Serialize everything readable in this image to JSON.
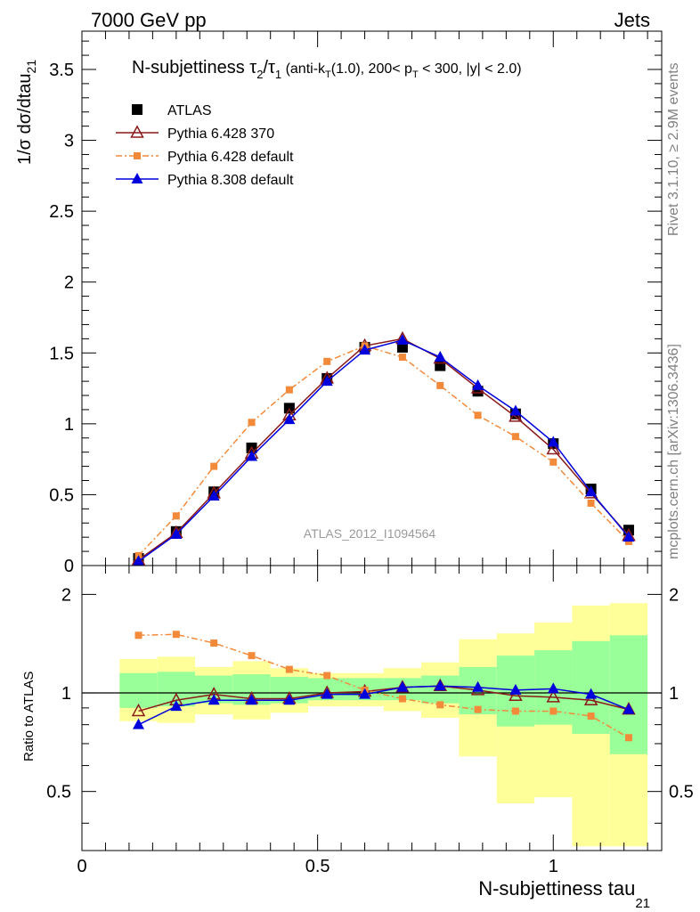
{
  "header": {
    "left": "7000 GeV pp",
    "right": "Jets"
  },
  "side_labels": {
    "rivet": "Rivet 3.1.10, ≥ 2.9M events",
    "mcplots": "mcplots.cern.ch [arXiv:1306.3436]"
  },
  "chart_data": [
    {
      "type": "line",
      "title": {
        "main": "N-subjettiness τ",
        "sub2": "2",
        "slash": "/τ",
        "sub1": "1",
        "detail_a": " (anti-k",
        "detail_sub": "T",
        "detail_b": "(1.0), 200< p",
        "detail_sub2": "T",
        "detail_c": " < 300, |y| < 2.0)"
      },
      "ylabel": {
        "main": "1/σ dσ/dtau",
        "sub": "21"
      },
      "watermark": "ATLAS_2012_I1094564",
      "xlim": [
        0,
        1.23
      ],
      "ylim": [
        0,
        3.77
      ],
      "y_ticks": [
        0,
        0.5,
        1,
        1.5,
        2,
        2.5,
        3,
        3.5
      ],
      "y_tick_labels": [
        "0",
        "0.5",
        "1",
        "1.5",
        "2",
        "2.5",
        "3",
        "3.5"
      ],
      "legend_position": "top-left",
      "series": [
        {
          "name": "ATLAS",
          "color": "#000000",
          "marker": "square",
          "x": [
            0.12,
            0.2,
            0.28,
            0.36,
            0.44,
            0.52,
            0.6,
            0.68,
            0.76,
            0.84,
            0.92,
            1.0,
            1.08,
            1.16
          ],
          "y": [
            0.05,
            0.24,
            0.52,
            0.83,
            1.11,
            1.32,
            1.54,
            1.54,
            1.41,
            1.23,
            1.07,
            0.86,
            0.54,
            0.25
          ]
        },
        {
          "name": "Pythia 6.428 370",
          "color": "#8b1a1a",
          "marker": "open-triangle",
          "x": [
            0.12,
            0.2,
            0.28,
            0.36,
            0.44,
            0.52,
            0.6,
            0.68,
            0.76,
            0.84,
            0.92,
            1.0,
            1.08,
            1.16
          ],
          "y": [
            0.04,
            0.23,
            0.51,
            0.79,
            1.06,
            1.32,
            1.55,
            1.6,
            1.46,
            1.25,
            1.05,
            0.82,
            0.51,
            0.21
          ]
        },
        {
          "name": "Pythia 6.428 default",
          "color": "#f28a3a",
          "marker": "small-square",
          "dashed": true,
          "x": [
            0.12,
            0.2,
            0.28,
            0.36,
            0.44,
            0.52,
            0.6,
            0.68,
            0.76,
            0.84,
            0.92,
            1.0,
            1.08,
            1.16
          ],
          "y": [
            0.07,
            0.35,
            0.7,
            1.01,
            1.24,
            1.44,
            1.55,
            1.47,
            1.27,
            1.06,
            0.91,
            0.73,
            0.44,
            0.17
          ]
        },
        {
          "name": "Pythia 8.308 default",
          "color": "#0000dd",
          "marker": "triangle",
          "x": [
            0.12,
            0.2,
            0.28,
            0.36,
            0.44,
            0.52,
            0.6,
            0.68,
            0.76,
            0.84,
            0.92,
            1.0,
            1.08,
            1.16
          ],
          "y": [
            0.03,
            0.22,
            0.49,
            0.77,
            1.03,
            1.3,
            1.52,
            1.59,
            1.47,
            1.27,
            1.09,
            0.87,
            0.52,
            0.2
          ]
        }
      ]
    },
    {
      "type": "line",
      "ylabel": "Ratio to ATLAS",
      "xlabel": {
        "main": "N-subjettiness tau",
        "sub": "21"
      },
      "xlim": [
        0,
        1.23
      ],
      "ylim": [
        0.33,
        2.45
      ],
      "y_log_scale": true,
      "x_ticks": [
        0,
        0.5,
        1
      ],
      "x_tick_labels": [
        "0",
        "0.5",
        "1"
      ],
      "y_ticks": [
        0.5,
        1,
        2
      ],
      "y_tick_labels": [
        "0.5",
        "1",
        "2"
      ],
      "reference_line": 1,
      "bins": {
        "edges": [
          0.08,
          0.16,
          0.24,
          0.32,
          0.4,
          0.48,
          0.56,
          0.64,
          0.72,
          0.8,
          0.88,
          0.96,
          1.04,
          1.12,
          1.2
        ],
        "inner_band_lo": [
          0.9,
          0.91,
          0.93,
          0.92,
          0.93,
          0.95,
          0.95,
          0.95,
          0.93,
          0.86,
          0.79,
          0.8,
          0.75,
          0.65
        ],
        "inner_band_hi": [
          1.15,
          1.16,
          1.13,
          1.14,
          1.12,
          1.11,
          1.11,
          1.11,
          1.13,
          1.2,
          1.3,
          1.35,
          1.44,
          1.5
        ],
        "outer_band_lo": [
          0.82,
          0.81,
          0.86,
          0.83,
          0.87,
          0.91,
          0.91,
          0.88,
          0.84,
          0.64,
          0.46,
          0.48,
          0.34,
          0.34
        ],
        "outer_band_hi": [
          1.27,
          1.29,
          1.2,
          1.25,
          1.19,
          1.15,
          1.15,
          1.19,
          1.24,
          1.46,
          1.52,
          1.64,
          1.85,
          1.88
        ],
        "inner_color": "#99ff99",
        "outer_color": "#ffff99"
      },
      "series": [
        {
          "name": "Pythia 6.428 370",
          "color": "#8b1a1a",
          "marker": "open-triangle",
          "x": [
            0.12,
            0.2,
            0.28,
            0.36,
            0.44,
            0.52,
            0.6,
            0.68,
            0.76,
            0.84,
            0.92,
            1.0,
            1.08,
            1.16
          ],
          "y": [
            0.88,
            0.95,
            0.99,
            0.96,
            0.96,
            1.0,
            1.01,
            1.04,
            1.05,
            1.02,
            0.98,
            0.97,
            0.95,
            0.89
          ]
        },
        {
          "name": "Pythia 6.428 default",
          "color": "#f28a3a",
          "marker": "small-square",
          "dashed": true,
          "x": [
            0.12,
            0.2,
            0.28,
            0.36,
            0.44,
            0.52,
            0.6,
            0.68,
            0.76,
            0.84,
            0.92,
            1.0,
            1.08,
            1.16
          ],
          "y": [
            1.5,
            1.51,
            1.42,
            1.3,
            1.18,
            1.13,
            1.02,
            0.96,
            0.92,
            0.89,
            0.88,
            0.88,
            0.85,
            0.73
          ]
        },
        {
          "name": "Pythia 8.308 default",
          "color": "#0000dd",
          "marker": "triangle",
          "x": [
            0.12,
            0.2,
            0.28,
            0.36,
            0.44,
            0.52,
            0.6,
            0.68,
            0.76,
            0.84,
            0.92,
            1.0,
            1.08,
            1.16
          ],
          "y": [
            0.8,
            0.91,
            0.95,
            0.95,
            0.95,
            0.99,
            0.99,
            1.04,
            1.05,
            1.04,
            1.02,
            1.03,
            0.99,
            0.89
          ]
        }
      ]
    }
  ]
}
